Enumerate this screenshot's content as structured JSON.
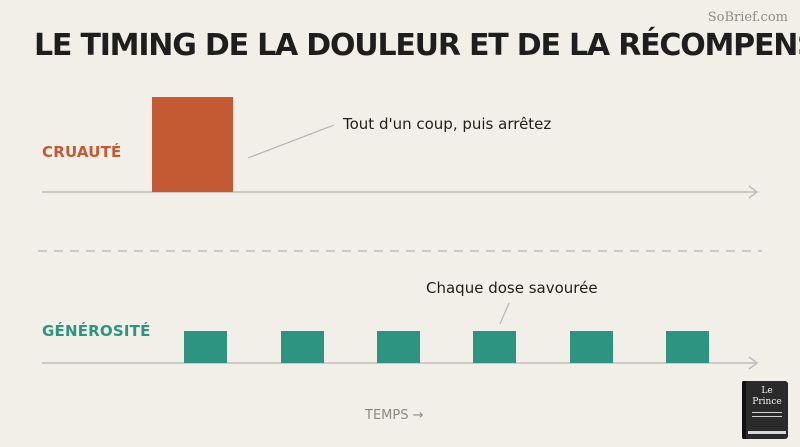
{
  "watermark": "SoBrief.com",
  "title": "LE TIMING DE LA DOULEUR ET DE LA RÉCOMPENSE",
  "rows": {
    "cruelty": {
      "label": "CRUAUTÉ",
      "annotation": "Tout d'un coup, puis arrêtez",
      "color": "#c45a33"
    },
    "generosity": {
      "label": "GÉNÉROSITÉ",
      "annotation": "Chaque dose savourée",
      "color": "#2e9482"
    }
  },
  "time_axis_label": "TEMPS →",
  "book": {
    "title_line1": "Le",
    "title_line2": "Prince"
  }
}
